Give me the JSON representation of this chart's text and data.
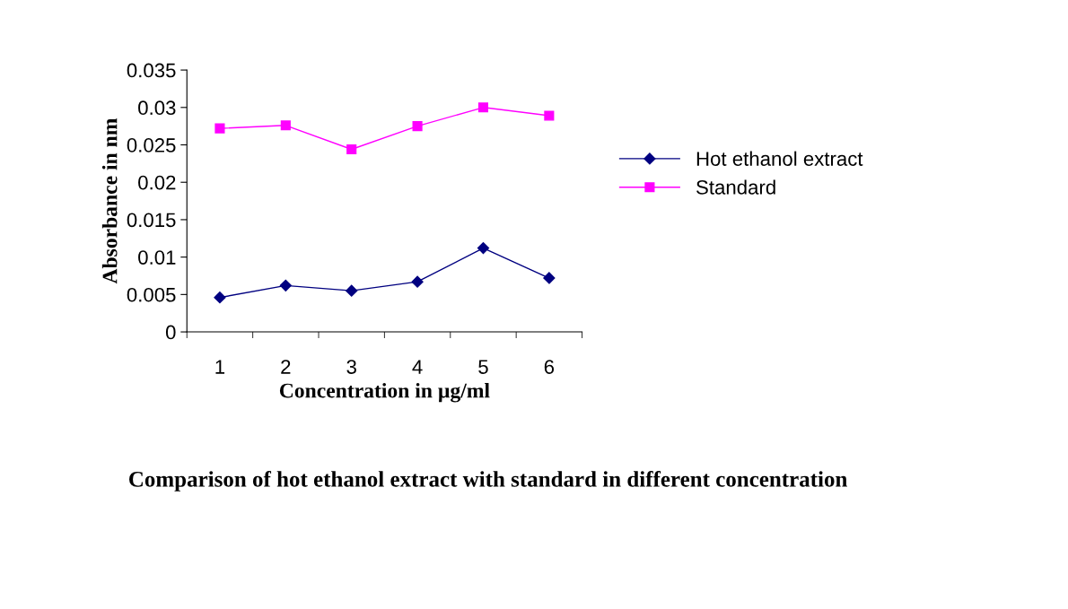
{
  "chart_data": {
    "type": "line",
    "annotations": [
      "Comparison of hot ethanol extract with standard in different concentration"
    ],
    "xlabel": "Concentration in µg/ml",
    "ylabel": "Absorbance in nm",
    "categories": [
      "1",
      "2",
      "3",
      "4",
      "5",
      "6"
    ],
    "series": [
      {
        "name": "Hot ethanol extract",
        "color": "#000080",
        "marker": "diamond",
        "values": [
          0.0046,
          0.0062,
          0.0055,
          0.0067,
          0.0112,
          0.0072
        ]
      },
      {
        "name": "Standard",
        "color": "#ff00ff",
        "marker": "square",
        "values": [
          0.0272,
          0.0276,
          0.0244,
          0.0275,
          0.03,
          0.0289
        ]
      }
    ],
    "ylim": [
      0,
      0.035
    ],
    "yticks": [
      0,
      0.005,
      0.01,
      0.015,
      0.02,
      0.025,
      0.03,
      0.035
    ],
    "grid": false,
    "legend": "right",
    "line_style": "solid"
  }
}
